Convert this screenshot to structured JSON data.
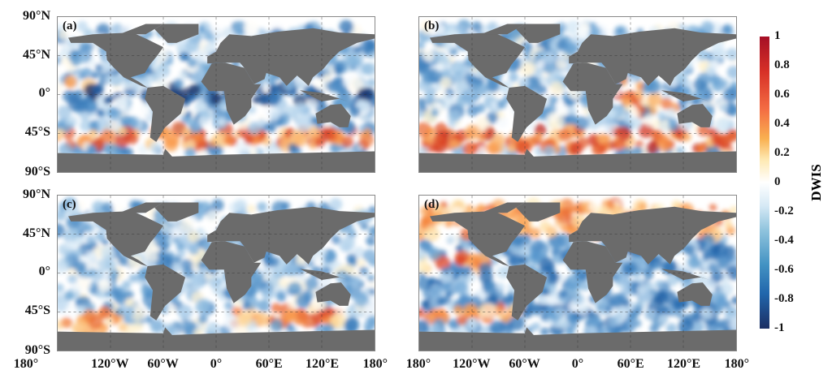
{
  "panels": [
    {
      "label": "(a)"
    },
    {
      "label": "(b)"
    },
    {
      "label": "(c)"
    },
    {
      "label": "(d)"
    }
  ],
  "y_ticks": [
    "90°N",
    "45°N",
    "0°",
    "45°S",
    "90°S"
  ],
  "x_ticks": [
    "180°",
    "120°W",
    "60°W",
    "0°",
    "60°E",
    "120°E",
    "180°"
  ],
  "colorbar": {
    "label": "DWIS",
    "ticks": [
      "1",
      "0.8",
      "0.6",
      "0.4",
      "0.2",
      "0",
      "-0.2",
      "-0.4",
      "-0.6",
      "-0.8",
      "-1"
    ],
    "range": [
      -1,
      1
    ]
  },
  "colors": {
    "land": "#6b6b6b",
    "positive": "#d73027",
    "negative": "#2166ac"
  }
}
